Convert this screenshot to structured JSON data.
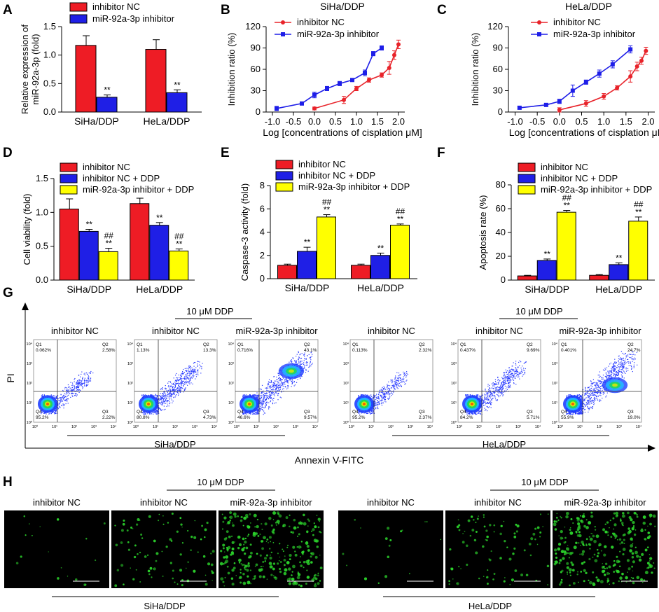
{
  "colors": {
    "red": "#ee1c25",
    "blue": "#1f1fe6",
    "yellow": "#ffff00",
    "black": "#000000",
    "green": "#2bd12b",
    "blueLine": "#1e1ee8",
    "redLine": "#e8232a"
  },
  "panel_labels": {
    "A": "A",
    "B": "B",
    "C": "C",
    "D": "D",
    "E": "E",
    "F": "F",
    "G": "G",
    "H": "H"
  },
  "chart_data": [
    {
      "id": "A",
      "type": "bar",
      "ylabel": [
        "Relative expression of",
        "miR-92a-3p (fold)"
      ],
      "categories": [
        "SiHa/DDP",
        "HeLa/DDP"
      ],
      "ylim": [
        0,
        1.5
      ],
      "yticks": [
        "0.0",
        "0.5",
        "1.0",
        "1.5"
      ],
      "series": [
        {
          "name": "inhibitor NC",
          "color": "#ee1c25",
          "values": [
            1.17,
            1.1
          ],
          "errors": [
            0.17,
            0.17
          ],
          "sig": [
            "",
            ""
          ]
        },
        {
          "name": "miR-92a-3p inhibitor",
          "color": "#1f1fe6",
          "values": [
            0.26,
            0.34
          ],
          "errors": [
            0.04,
            0.05
          ],
          "sig": [
            "**",
            "**"
          ]
        }
      ]
    },
    {
      "id": "B",
      "type": "line",
      "title": "SiHa/DDP",
      "ylabel": "Inhibition ratio (%)",
      "xlabel": "Log [concentrations of cisplation μM]",
      "xlim": [
        -1.15,
        2.15
      ],
      "ylim": [
        0,
        120
      ],
      "xticks": [
        "-1.0",
        "-0.5",
        "0.0",
        "0.5",
        "1.0",
        "1.5",
        "2.0"
      ],
      "yticks": [
        "0",
        "30",
        "60",
        "90",
        "120"
      ],
      "series": [
        {
          "name": "inhibitor NC",
          "color": "#e8232a",
          "x": [
            0.0,
            0.7,
            1.0,
            1.3,
            1.6,
            1.78,
            1.9,
            2.0
          ],
          "y": [
            5,
            17,
            33,
            45,
            52,
            62,
            80,
            95
          ],
          "err": [
            2,
            5,
            3,
            3,
            3,
            9,
            6,
            6
          ]
        },
        {
          "name": "miR-92a-3p inhibitor",
          "color": "#1e1ee8",
          "x": [
            -0.9,
            -0.3,
            0.0,
            0.3,
            0.6,
            0.9,
            1.2,
            1.4,
            1.6
          ],
          "y": [
            5,
            12,
            24,
            33,
            40,
            45,
            55,
            82,
            90
          ],
          "err": [
            3,
            2,
            4,
            3,
            3,
            2,
            4,
            3,
            3
          ]
        }
      ]
    },
    {
      "id": "C",
      "type": "line",
      "title": "HeLa/DDP",
      "ylabel": "Inhibition ratio (%)",
      "xlabel": "Log [concentrations of cisplation μM]",
      "xlim": [
        -1.15,
        2.15
      ],
      "ylim": [
        0,
        120
      ],
      "xticks": [
        "-1.0",
        "-0.5",
        "0.0",
        "0.5",
        "1.0",
        "1.5",
        "2.0"
      ],
      "yticks": [
        "0",
        "30",
        "60",
        "90",
        "120"
      ],
      "series": [
        {
          "name": "inhibitor NC",
          "color": "#e8232a",
          "x": [
            0.0,
            0.6,
            1.0,
            1.3,
            1.6,
            1.75,
            1.85,
            1.95
          ],
          "y": [
            3,
            12,
            22,
            34,
            50,
            64,
            72,
            86
          ],
          "err": [
            3,
            4,
            4,
            3,
            8,
            6,
            5,
            5
          ]
        },
        {
          "name": "miR-92a-3p inhibitor",
          "color": "#1e1ee8",
          "x": [
            -0.9,
            -0.3,
            0.0,
            0.3,
            0.6,
            0.9,
            1.2,
            1.6
          ],
          "y": [
            6,
            10,
            15,
            30,
            42,
            54,
            67,
            88
          ],
          "err": [
            2,
            2,
            3,
            8,
            3,
            5,
            5,
            5
          ]
        }
      ]
    },
    {
      "id": "D",
      "type": "bar",
      "ylabel": "Cell viability (fold)",
      "categories": [
        "SiHa/DDP",
        "HeLa/DDP"
      ],
      "ylim": [
        0,
        1.5
      ],
      "yticks": [
        "0.0",
        "0.5",
        "1.0",
        "1.5"
      ],
      "series": [
        {
          "name": "inhibitor NC",
          "color": "#ee1c25",
          "values": [
            1.05,
            1.13
          ],
          "errors": [
            0.15,
            0.08
          ],
          "sig": [
            "",
            ""
          ]
        },
        {
          "name": "inhibitor NC + DDP",
          "color": "#1f1fe6",
          "values": [
            0.72,
            0.81
          ],
          "errors": [
            0.03,
            0.04
          ],
          "sig": [
            "**",
            "**"
          ]
        },
        {
          "name": "miR-92a-3p inhibitor + DDP",
          "color": "#ffff00",
          "values": [
            0.42,
            0.43
          ],
          "errors": [
            0.05,
            0.03
          ],
          "sig": [
            "##\n**",
            "##\n**"
          ]
        }
      ]
    },
    {
      "id": "E",
      "type": "bar",
      "ylabel": "Caspase-3 activity (fold)",
      "categories": [
        "SiHa/DDP",
        "HeLa/DDP"
      ],
      "ylim": [
        0,
        8
      ],
      "yticks": [
        "0",
        "2",
        "4",
        "6",
        "8"
      ],
      "series": [
        {
          "name": "inhibitor NC",
          "color": "#ee1c25",
          "values": [
            1.15,
            1.15
          ],
          "errors": [
            0.1,
            0.1
          ],
          "sig": [
            "",
            ""
          ]
        },
        {
          "name": "inhibitor NC + DDP",
          "color": "#1f1fe6",
          "values": [
            2.35,
            2.0
          ],
          "errors": [
            0.35,
            0.2
          ],
          "sig": [
            "**",
            "**"
          ]
        },
        {
          "name": "miR-92a-3p inhibitor + DDP",
          "color": "#ffff00",
          "values": [
            5.3,
            4.6
          ],
          "errors": [
            0.2,
            0.1
          ],
          "sig": [
            "##\n**",
            "##\n**"
          ]
        }
      ]
    },
    {
      "id": "F",
      "type": "bar",
      "ylabel": "Apoptosis rate (%)",
      "categories": [
        "SiHa/DDP",
        "HeLa/DDP"
      ],
      "ylim": [
        0,
        80
      ],
      "yticks": [
        "0",
        "20",
        "40",
        "60",
        "80"
      ],
      "series": [
        {
          "name": "inhibitor NC",
          "color": "#ee1c25",
          "values": [
            3.5,
            4.0
          ],
          "errors": [
            0.5,
            0.7
          ],
          "sig": [
            "",
            ""
          ]
        },
        {
          "name": "inhibitor NC + DDP",
          "color": "#1f1fe6",
          "values": [
            16.5,
            13.0
          ],
          "errors": [
            1.2,
            1.5
          ],
          "sig": [
            "**",
            "**"
          ]
        },
        {
          "name": "miR-92a-3p inhibitor + DDP",
          "color": "#ffff00",
          "values": [
            57.0,
            49.5
          ],
          "errors": [
            1.5,
            3.5
          ],
          "sig": [
            "##\n**",
            "##\n**"
          ]
        }
      ]
    }
  ],
  "flow": {
    "ylabel": "PI",
    "xlabel": "Annexin V-FITC",
    "dose_label": "10 μM DDP",
    "group_labels": [
      "SiHa/DDP",
      "HeLa/DDP"
    ],
    "axis_ticks": [
      "10⁰",
      "10¹",
      "10²",
      "10³",
      "10⁴"
    ],
    "plots": [
      {
        "title": "inhibitor NC",
        "q1": "0.062%",
        "q2": "2.58%",
        "q3": "2.22%",
        "q4": "95.2%",
        "density": 1
      },
      {
        "title": "inhibitor NC",
        "q1": "1.13%",
        "q2": "13.3%",
        "q3": "4.73%",
        "q4": "80.8%",
        "density": 2
      },
      {
        "title": "miR-92a-3p inhibitor",
        "q1": "0.716%",
        "q2": "43.1%",
        "q3": "9.57%",
        "q4": "46.6%",
        "density": 3
      },
      {
        "title": "inhibitor NC",
        "q1": "0.113%",
        "q2": "2.32%",
        "q3": "2.37%",
        "q4": "95.2%",
        "density": 1
      },
      {
        "title": "inhibitor NC",
        "q1": "0.437%",
        "q2": "9.69%",
        "q3": "5.71%",
        "q4": "84.2%",
        "density": 2
      },
      {
        "title": "miR-92a-3p inhibitor",
        "q1": "0.401%",
        "q2": "24.7%",
        "q3": "19.0%",
        "q4": "55.9%",
        "density": 3
      }
    ]
  },
  "micro": {
    "dose_label": "10 μM DDP",
    "group_labels": [
      "SiHa/DDP",
      "HeLa/DDP"
    ],
    "images": [
      {
        "title": "inhibitor NC",
        "level": 1
      },
      {
        "title": "inhibitor NC",
        "level": 2
      },
      {
        "title": "miR-92a-3p inhibitor",
        "level": 3
      },
      {
        "title": "inhibitor NC",
        "level": 1
      },
      {
        "title": "inhibitor NC",
        "level": 2
      },
      {
        "title": "miR-92a-3p inhibitor",
        "level": 3
      }
    ]
  }
}
